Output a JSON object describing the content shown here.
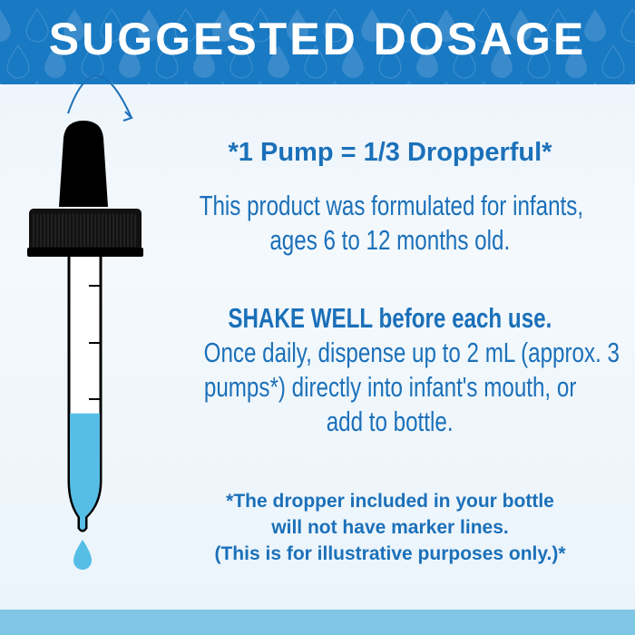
{
  "header": {
    "title": "SUGGESTED DOSAGE"
  },
  "main": {
    "pump_ratio": "*1 Pump = 1/3 Dropperful*",
    "intro_lines": [
      "This product was formulated for infants,",
      "ages 6 to 12 months old."
    ],
    "shake": "SHAKE WELL before each use.",
    "instructions_lines": [
      "Once daily, dispense up to 2 mL (approx. 3",
      "pumps*) directly into infant's mouth, or",
      "add to bottle."
    ],
    "note_lines": [
      "*The dropper included in your bottle",
      "will not have marker lines.",
      "(This is for illustrative purposes only.)*"
    ]
  },
  "illustration": {
    "icon": "dropper-icon",
    "liquid_fill_fraction": 0.43,
    "liquid_color": "#56bde6"
  },
  "colors": {
    "header": "#1979c3",
    "text": "#1b70b9",
    "band": "#7fc7e4"
  }
}
